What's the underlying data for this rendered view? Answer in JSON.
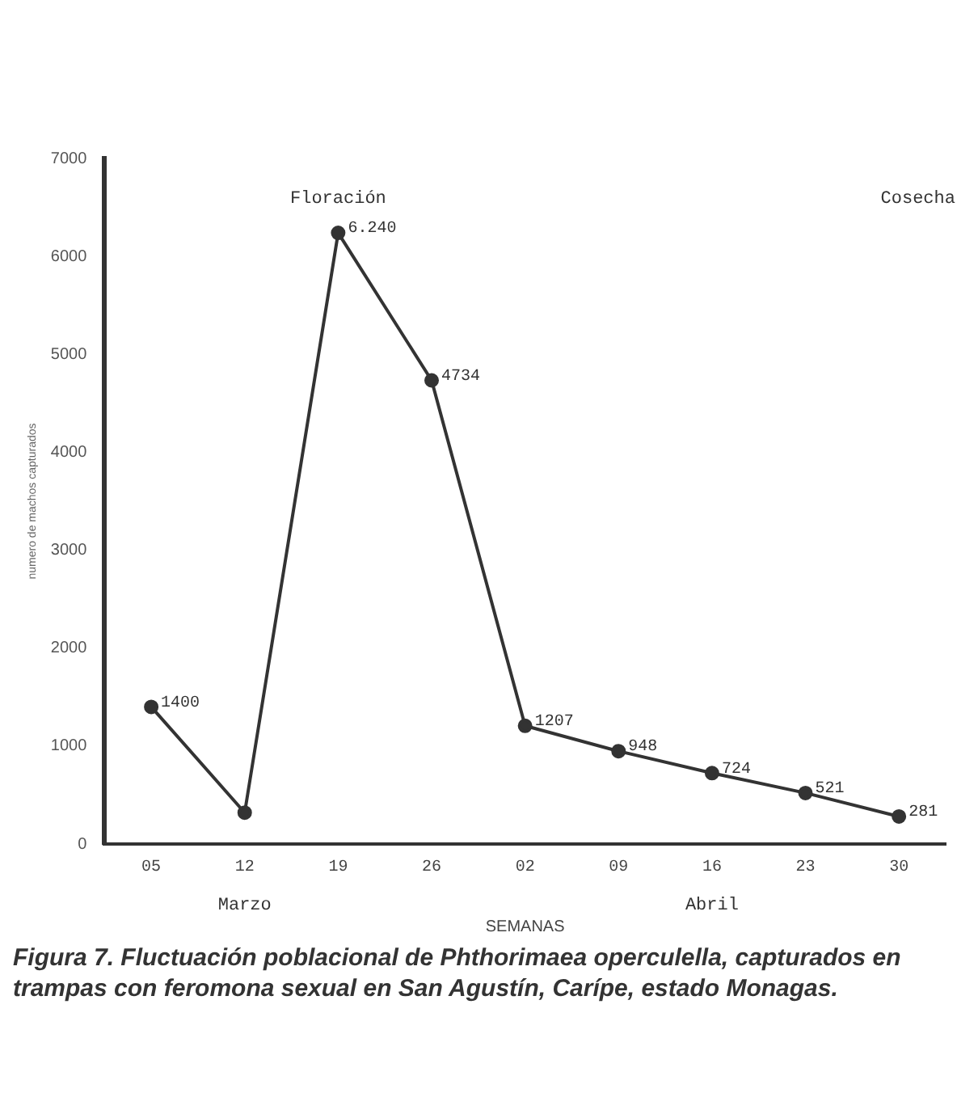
{
  "chart_data": {
    "type": "line",
    "title": "Figura 7.  Fluctuación poblacional de  Phthorimaea operculella, capturados en trampas con feromona sexual en San Agustín, Carípe, estado Monagas.",
    "xlabel": "SEMANAS",
    "ylabel": "numero de machos capturados",
    "categories": [
      "05",
      "12",
      "19",
      "26",
      "02",
      "09",
      "16",
      "23",
      "30"
    ],
    "series": [
      {
        "color": "#333333",
        "values": [
          1400,
          320,
          6240,
          4734,
          1207,
          948,
          724,
          521,
          281
        ],
        "value_labels": [
          "1400",
          null,
          "6.240",
          "4734",
          "1207",
          "948",
          "724",
          "521",
          "281"
        ]
      }
    ],
    "ylim": [
      0,
      7000
    ],
    "yticks": [
      0,
      1000,
      2000,
      3000,
      4000,
      5000,
      6000,
      7000
    ],
    "annotations": [
      "Floración",
      "Cosecha",
      "Marzo",
      "Abril"
    ],
    "grid": false,
    "legend": false,
    "marker": "circle",
    "line_style": "solid"
  }
}
